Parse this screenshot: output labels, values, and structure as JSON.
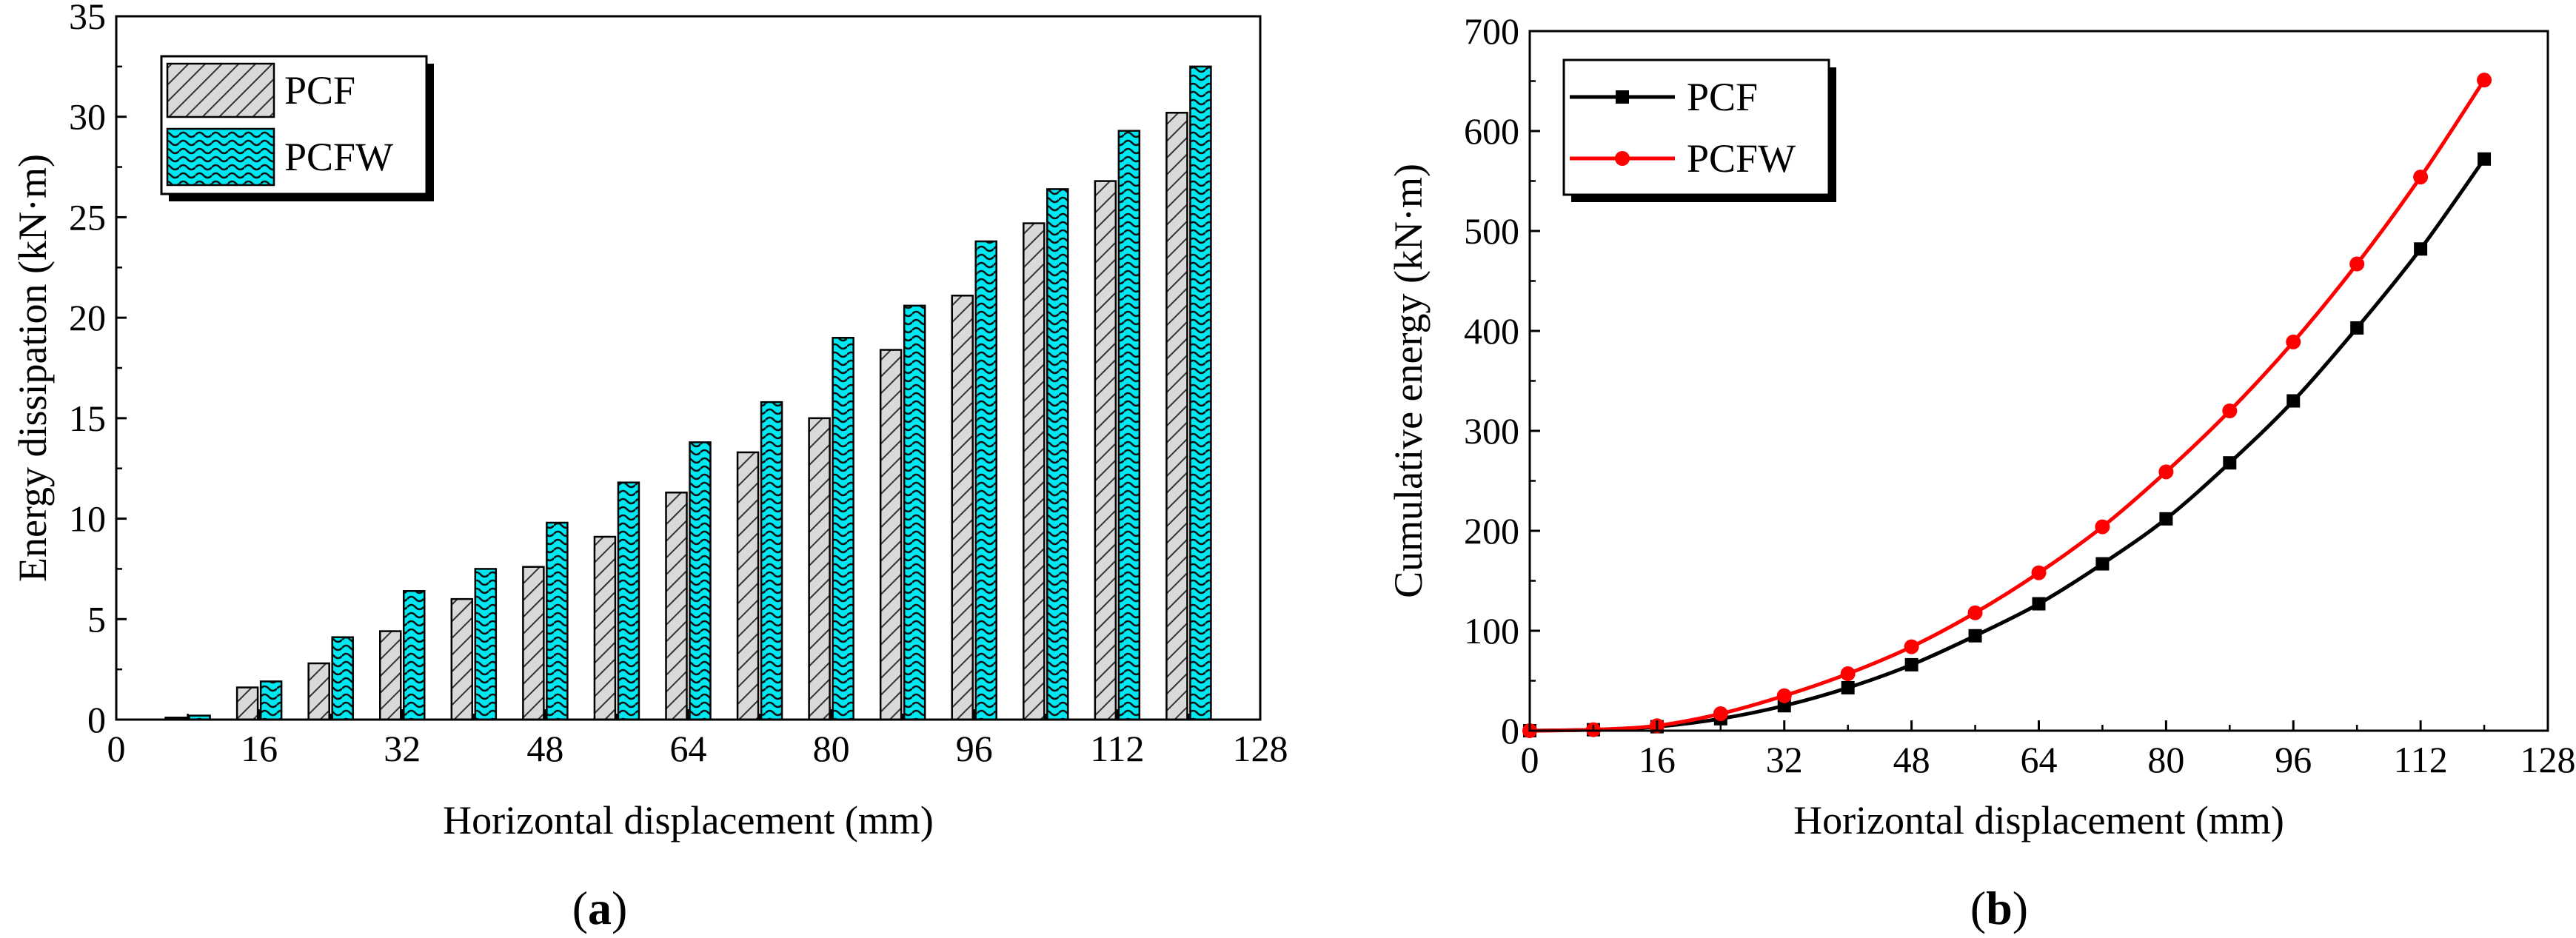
{
  "chart_data": [
    {
      "panel": "(a)",
      "panel_label_letter": "a",
      "type": "bar",
      "xlabel": "Horizontal displacement (mm)",
      "ylabel": "Energy dissipation (kN·m)",
      "xlim": [
        0,
        128
      ],
      "ylim": [
        0,
        35
      ],
      "xticks": [
        0,
        16,
        32,
        48,
        64,
        80,
        96,
        112,
        128
      ],
      "yticks": [
        0,
        5,
        10,
        15,
        20,
        25,
        30,
        35
      ],
      "legend_position": "top-left",
      "x": [
        8,
        16,
        24,
        32,
        40,
        48,
        56,
        64,
        72,
        80,
        88,
        96,
        104,
        112,
        120
      ],
      "series": [
        {
          "name": "PCF",
          "pattern": "diagonal hatch",
          "color": "#c8c8c8",
          "values": [
            0.1,
            1.6,
            2.8,
            4.4,
            6.0,
            7.6,
            9.1,
            11.3,
            13.3,
            15.0,
            18.4,
            21.1,
            24.7,
            26.8,
            30.2
          ]
        },
        {
          "name": "PCFW",
          "pattern": "wave",
          "color": "#00e6f0",
          "values": [
            0.2,
            1.9,
            4.1,
            6.4,
            7.5,
            9.8,
            11.8,
            13.8,
            15.8,
            19.0,
            20.6,
            23.8,
            26.4,
            29.3,
            32.5
          ]
        }
      ]
    },
    {
      "panel": "(b)",
      "panel_label_letter": "b",
      "type": "line",
      "xlabel": "Horizontal displacement (mm)",
      "ylabel": "Cumulative energy (kN·m)",
      "xlim": [
        0,
        128
      ],
      "ylim": [
        0,
        700
      ],
      "xticks": [
        0,
        16,
        32,
        48,
        64,
        80,
        96,
        112,
        128
      ],
      "yticks": [
        0,
        100,
        200,
        300,
        400,
        500,
        600,
        700
      ],
      "legend_position": "top-left",
      "x": [
        0,
        8,
        16,
        24,
        32,
        40,
        48,
        56,
        64,
        72,
        80,
        88,
        96,
        104,
        112,
        120
      ],
      "series": [
        {
          "name": "PCF",
          "color": "#000000",
          "marker": "square",
          "values": [
            0,
            1,
            4,
            12,
            25,
            43,
            66,
            95,
            127,
            167,
            212,
            268,
            330,
            403,
            482,
            572
          ]
        },
        {
          "name": "PCFW",
          "color": "#ff0000",
          "marker": "circle",
          "values": [
            0,
            1,
            5,
            17,
            35,
            57,
            84,
            118,
            158,
            204,
            259,
            320,
            389,
            467,
            554,
            651
          ]
        }
      ]
    }
  ]
}
